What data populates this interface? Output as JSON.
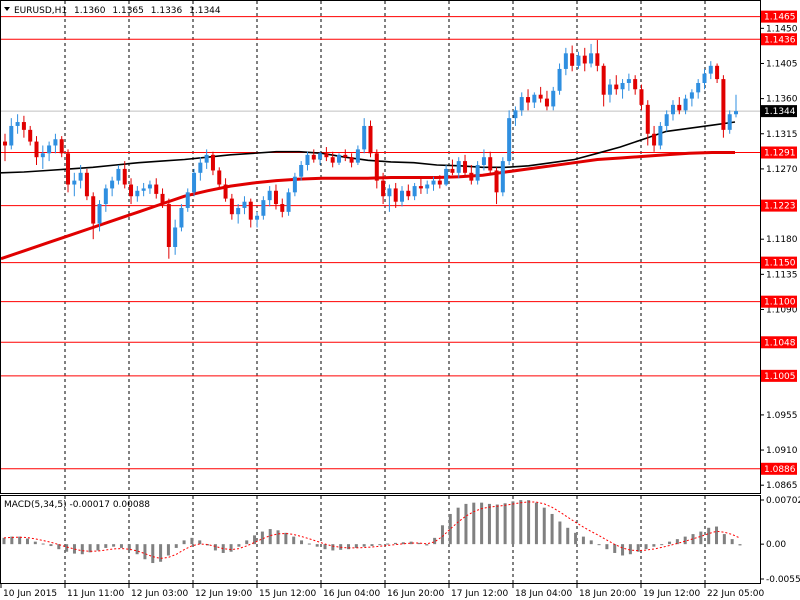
{
  "chart_data": {
    "type": "candlestick",
    "symbol": "EURUSD,H1",
    "ohlc": {
      "open": "1.1360",
      "high": "1.1365",
      "low": "1.1336",
      "close": "1.1344"
    },
    "price_axis": {
      "range": [
        1.0855,
        1.1485
      ],
      "ticks": [
        "1.1450",
        "1.1405",
        "1.1360",
        "1.1315",
        "1.1270",
        "1.1180",
        "1.1135",
        "1.1090",
        "1.1045",
        "1.0955",
        "1.0910",
        "1.0865"
      ]
    },
    "current_price": "1.1344",
    "levels": [
      "1.1465",
      "1.1436",
      "1.1291",
      "1.1223",
      "1.1150",
      "1.1100",
      "1.1048",
      "1.1005",
      "1.0886"
    ],
    "time_axis": [
      "10 Jun 2015",
      "11 Jun 11:00",
      "12 Jun 03:00",
      "12 Jun 19:00",
      "15 Jun 12:00",
      "16 Jun 04:00",
      "16 Jun 20:00",
      "17 Jun 12:00",
      "18 Jun 04:00",
      "18 Jun 20:00",
      "19 Jun 12:00",
      "22 Jun 05:00"
    ],
    "candles": [
      [
        1.1305,
        1.1315,
        1.128,
        1.13
      ],
      [
        1.13,
        1.1335,
        1.1295,
        1.1325
      ],
      [
        1.1325,
        1.134,
        1.1315,
        1.133
      ],
      [
        1.133,
        1.1338,
        1.131,
        1.132
      ],
      [
        1.132,
        1.1325,
        1.13,
        1.1305
      ],
      [
        1.1305,
        1.1312,
        1.1275,
        1.1285
      ],
      [
        1.1285,
        1.13,
        1.127,
        1.129
      ],
      [
        1.129,
        1.1305,
        1.128,
        1.13
      ],
      [
        1.13,
        1.1315,
        1.129,
        1.1308
      ],
      [
        1.1308,
        1.1312,
        1.1285,
        1.129
      ],
      [
        1.129,
        1.1295,
        1.124,
        1.125
      ],
      [
        1.125,
        1.1265,
        1.1235,
        1.1255
      ],
      [
        1.1255,
        1.1275,
        1.1245,
        1.1265
      ],
      [
        1.1265,
        1.127,
        1.123,
        1.1235
      ],
      [
        1.1235,
        1.124,
        1.118,
        1.12
      ],
      [
        1.12,
        1.123,
        1.119,
        1.1225
      ],
      [
        1.1225,
        1.125,
        1.1215,
        1.1245
      ],
      [
        1.1245,
        1.126,
        1.1235,
        1.1255
      ],
      [
        1.1255,
        1.1275,
        1.125,
        1.127
      ],
      [
        1.127,
        1.128,
        1.1245,
        1.125
      ],
      [
        1.125,
        1.1258,
        1.1225,
        1.1235
      ],
      [
        1.1235,
        1.1248,
        1.1228,
        1.1242
      ],
      [
        1.1242,
        1.1252,
        1.1235,
        1.1245
      ],
      [
        1.1245,
        1.1255,
        1.1238,
        1.125
      ],
      [
        1.125,
        1.1258,
        1.1232,
        1.1238
      ],
      [
        1.1238,
        1.1245,
        1.122,
        1.1225
      ],
      [
        1.1225,
        1.1232,
        1.1155,
        1.117
      ],
      [
        1.117,
        1.1205,
        1.116,
        1.1195
      ],
      [
        1.1195,
        1.1225,
        1.119,
        1.122
      ],
      [
        1.122,
        1.1245,
        1.1215,
        1.124
      ],
      [
        1.124,
        1.127,
        1.1235,
        1.1265
      ],
      [
        1.1265,
        1.1285,
        1.1255,
        1.1278
      ],
      [
        1.1278,
        1.1295,
        1.127,
        1.1288
      ],
      [
        1.1288,
        1.1292,
        1.1262,
        1.1268
      ],
      [
        1.1268,
        1.1272,
        1.1245,
        1.125
      ],
      [
        1.125,
        1.1258,
        1.1228,
        1.1232
      ],
      [
        1.1232,
        1.1238,
        1.1205,
        1.1212
      ],
      [
        1.1212,
        1.1225,
        1.12,
        1.122
      ],
      [
        1.122,
        1.1235,
        1.1212,
        1.1228
      ],
      [
        1.1228,
        1.1232,
        1.1195,
        1.1205
      ],
      [
        1.1205,
        1.1215,
        1.1195,
        1.121
      ],
      [
        1.121,
        1.1235,
        1.1205,
        1.123
      ],
      [
        1.123,
        1.1248,
        1.1222,
        1.1242
      ],
      [
        1.1242,
        1.125,
        1.1218,
        1.1225
      ],
      [
        1.1225,
        1.1232,
        1.1208,
        1.1215
      ],
      [
        1.1215,
        1.1245,
        1.121,
        1.124
      ],
      [
        1.124,
        1.1265,
        1.1235,
        1.126
      ],
      [
        1.126,
        1.128,
        1.1255,
        1.1275
      ],
      [
        1.1275,
        1.1292,
        1.1268,
        1.1288
      ],
      [
        1.1288,
        1.1295,
        1.1278,
        1.1282
      ],
      [
        1.1282,
        1.1292,
        1.1275,
        1.129
      ],
      [
        1.129,
        1.1298,
        1.128,
        1.1285
      ],
      [
        1.1285,
        1.1292,
        1.1272,
        1.1278
      ],
      [
        1.1278,
        1.129,
        1.1275,
        1.1288
      ],
      [
        1.1288,
        1.1295,
        1.128,
        1.1285
      ],
      [
        1.1285,
        1.129,
        1.1272,
        1.1278
      ],
      [
        1.1278,
        1.13,
        1.1275,
        1.1295
      ],
      [
        1.1295,
        1.1335,
        1.129,
        1.1325
      ],
      [
        1.1325,
        1.1332,
        1.1285,
        1.129
      ],
      [
        1.129,
        1.1295,
        1.1245,
        1.1255
      ],
      [
        1.1255,
        1.1265,
        1.1225,
        1.1235
      ],
      [
        1.1235,
        1.125,
        1.1215,
        1.1245
      ],
      [
        1.1245,
        1.1252,
        1.122,
        1.1228
      ],
      [
        1.1228,
        1.1248,
        1.1222,
        1.1242
      ],
      [
        1.1242,
        1.125,
        1.123,
        1.1235
      ],
      [
        1.1235,
        1.1252,
        1.123,
        1.1248
      ],
      [
        1.1248,
        1.1258,
        1.1238,
        1.1245
      ],
      [
        1.1245,
        1.1255,
        1.1238,
        1.125
      ],
      [
        1.125,
        1.126,
        1.1242,
        1.1255
      ],
      [
        1.1255,
        1.1262,
        1.1245,
        1.125
      ],
      [
        1.125,
        1.1275,
        1.1248,
        1.127
      ],
      [
        1.127,
        1.1282,
        1.1262,
        1.1265
      ],
      [
        1.1265,
        1.1285,
        1.1258,
        1.128
      ],
      [
        1.128,
        1.1288,
        1.126,
        1.1265
      ],
      [
        1.1265,
        1.1275,
        1.125,
        1.1255
      ],
      [
        1.1255,
        1.128,
        1.125,
        1.1275
      ],
      [
        1.1275,
        1.1295,
        1.1268,
        1.1285
      ],
      [
        1.1285,
        1.1292,
        1.1262,
        1.1268
      ],
      [
        1.1268,
        1.1272,
        1.1225,
        1.124
      ],
      [
        1.124,
        1.1285,
        1.1235,
        1.128
      ],
      [
        1.128,
        1.1345,
        1.1275,
        1.1335
      ],
      [
        1.1335,
        1.135,
        1.1325,
        1.1345
      ],
      [
        1.1345,
        1.1368,
        1.1338,
        1.1362
      ],
      [
        1.1362,
        1.1372,
        1.1345,
        1.1355
      ],
      [
        1.1355,
        1.1368,
        1.1348,
        1.1365
      ],
      [
        1.1365,
        1.1375,
        1.1355,
        1.136
      ],
      [
        1.136,
        1.137,
        1.1345,
        1.135
      ],
      [
        1.135,
        1.1375,
        1.1345,
        1.137
      ],
      [
        1.137,
        1.1405,
        1.1365,
        1.1398
      ],
      [
        1.1398,
        1.1425,
        1.139,
        1.1418
      ],
      [
        1.1418,
        1.1428,
        1.1395,
        1.1402
      ],
      [
        1.1402,
        1.142,
        1.1398,
        1.1415
      ],
      [
        1.1415,
        1.1425,
        1.1395,
        1.1405
      ],
      [
        1.1405,
        1.143,
        1.14,
        1.1418
      ],
      [
        1.1418,
        1.1435,
        1.1395,
        1.1402
      ],
      [
        1.1402,
        1.1405,
        1.135,
        1.1365
      ],
      [
        1.1365,
        1.1385,
        1.1355,
        1.1378
      ],
      [
        1.1378,
        1.139,
        1.1365,
        1.1372
      ],
      [
        1.1372,
        1.1385,
        1.136,
        1.138
      ],
      [
        1.138,
        1.1392,
        1.137,
        1.1385
      ],
      [
        1.1385,
        1.139,
        1.1365,
        1.1372
      ],
      [
        1.1372,
        1.1378,
        1.1345,
        1.1352
      ],
      [
        1.1352,
        1.1358,
        1.13,
        1.1315
      ],
      [
        1.1315,
        1.1325,
        1.1292,
        1.13
      ],
      [
        1.13,
        1.133,
        1.1295,
        1.1325
      ],
      [
        1.1325,
        1.1345,
        1.1318,
        1.134
      ],
      [
        1.134,
        1.1358,
        1.1332,
        1.1352
      ],
      [
        1.1352,
        1.1362,
        1.134,
        1.1345
      ],
      [
        1.1345,
        1.1365,
        1.134,
        1.136
      ],
      [
        1.136,
        1.1372,
        1.135,
        1.1368
      ],
      [
        1.1368,
        1.1385,
        1.136,
        1.138
      ],
      [
        1.138,
        1.1398,
        1.1372,
        1.1392
      ],
      [
        1.1392,
        1.1408,
        1.1385,
        1.1402
      ],
      [
        1.1402,
        1.1405,
        1.138,
        1.1385
      ],
      [
        1.1385,
        1.139,
        1.131,
        1.132
      ],
      [
        1.132,
        1.1345,
        1.1315,
        1.134
      ],
      [
        1.134,
        1.1365,
        1.1336,
        1.1344
      ]
    ],
    "ma_black": [
      1.1265,
      1.1266,
      1.1268,
      1.127,
      1.1272,
      1.1275,
      1.1278,
      1.128,
      1.1282,
      1.1285,
      1.1288,
      1.129,
      1.1292,
      1.1292,
      1.129,
      1.1285,
      1.1281,
      1.1279,
      1.1278,
      1.1275,
      1.1274,
      1.1272,
      1.1272,
      1.1274,
      1.1278,
      1.1282,
      1.129,
      1.1298,
      1.1308,
      1.1318,
      1.1322,
      1.1326,
      1.133
    ],
    "ma_red": [
      1.1155,
      1.1165,
      1.1175,
      1.1185,
      1.1195,
      1.1205,
      1.1215,
      1.1225,
      1.1235,
      1.1242,
      1.1248,
      1.1252,
      1.1255,
      1.1257,
      1.1258,
      1.1258,
      1.1258,
      1.1259,
      1.1259,
      1.1259,
      1.126,
      1.1262,
      1.1266,
      1.127,
      1.1274,
      1.1278,
      1.1282,
      1.1284,
      1.1286,
      1.1288,
      1.129,
      1.1291,
      1.1291
    ],
    "macd": {
      "label": "MACD(5,34,5) -0.00017 0.00088",
      "range": [
        -0.00554,
        0.00702
      ],
      "ticks": [
        "0.00702",
        "0.00",
        "-0.00554"
      ],
      "histogram": [
        0.001,
        0.0012,
        0.0012,
        0.0009,
        0.0004,
        0.0001,
        -0.0003,
        -0.0008,
        -0.0012,
        -0.0015,
        -0.0016,
        -0.0013,
        -0.001,
        -0.0006,
        -0.0004,
        -0.0006,
        -0.001,
        -0.0016,
        -0.0024,
        -0.003,
        -0.0028,
        -0.0018,
        -0.0006,
        0.0006,
        0.001,
        0.0006,
        -0.0002,
        -0.001,
        -0.0014,
        -0.0012,
        -0.0004,
        0.0006,
        0.0014,
        0.002,
        0.0024,
        0.0022,
        0.0018,
        0.0012,
        0.0006,
        0.0001,
        -0.0004,
        -0.0008,
        -0.001,
        -0.0009,
        -0.0008,
        -0.0006,
        -0.0004,
        -0.0003,
        -0.0001,
        0.0001,
        0.0002,
        0.0003,
        0.0004,
        0.0002,
        -0.0002,
        0.001,
        0.003,
        0.0048,
        0.0058,
        0.0064,
        0.0066,
        0.0066,
        0.0064,
        0.0063,
        0.0065,
        0.0068,
        0.007,
        0.007,
        0.0066,
        0.0058,
        0.0048,
        0.0036,
        0.0026,
        0.0018,
        0.0012,
        0.0006,
        0.0,
        -0.0008,
        -0.0014,
        -0.0018,
        -0.0016,
        -0.0012,
        -0.0008,
        -0.0004,
        0.0,
        0.0004,
        0.0008,
        0.0012,
        0.0016,
        0.002,
        0.0026,
        0.0028,
        0.0016,
        0.0008,
        -0.0002
      ]
    }
  }
}
